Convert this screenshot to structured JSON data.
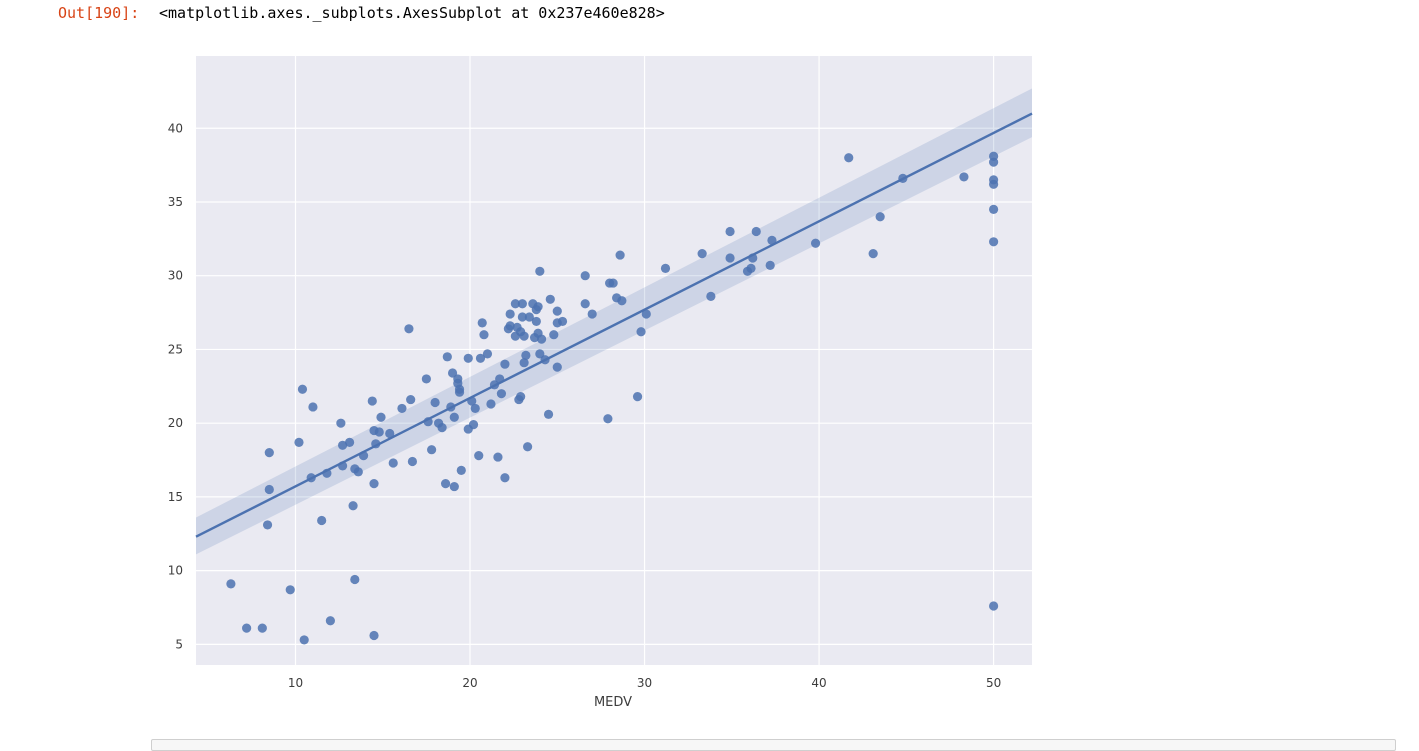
{
  "output": {
    "prompt": "Out[190]:",
    "text": "<matplotlib.axes._subplots.AxesSubplot at 0x237e460e828>"
  },
  "chart_data": {
    "type": "scatter",
    "title": "",
    "xlabel": "MEDV",
    "ylabel": "",
    "xlim": [
      4.3,
      52.2
    ],
    "ylim": [
      3.6,
      44.9
    ],
    "xticks": [
      10,
      20,
      30,
      40,
      50
    ],
    "yticks": [
      5,
      10,
      15,
      20,
      25,
      30,
      35,
      40
    ],
    "grid": true,
    "colors": {
      "points": "#4c72b0",
      "line": "#4c72b0",
      "band": "#4c72b0",
      "background": "#eaeaf2",
      "grid": "#ffffff"
    },
    "regression": {
      "x": [
        4.3,
        52.2
      ],
      "y": [
        12.3,
        41.0
      ],
      "ci_low": [
        11.1,
        39.4
      ],
      "ci_high": [
        13.6,
        42.7
      ]
    },
    "points": {
      "x": [
        6.3,
        7.2,
        8.1,
        8.4,
        8.5,
        8.5,
        9.7,
        10.2,
        10.4,
        10.5,
        10.9,
        11.0,
        11.5,
        11.8,
        12.0,
        12.6,
        12.7,
        12.7,
        13.1,
        13.3,
        13.4,
        13.4,
        13.6,
        13.9,
        14.4,
        14.5,
        14.5,
        14.5,
        14.6,
        14.8,
        14.9,
        15.4,
        15.6,
        16.1,
        16.5,
        16.6,
        16.7,
        17.5,
        17.6,
        17.8,
        18.0,
        18.2,
        18.4,
        18.6,
        18.7,
        18.9,
        19.0,
        19.1,
        19.1,
        19.3,
        19.3,
        19.4,
        19.4,
        19.5,
        19.9,
        19.9,
        20.1,
        20.2,
        20.3,
        20.5,
        20.6,
        20.7,
        20.8,
        21.0,
        21.2,
        21.4,
        21.6,
        21.7,
        21.8,
        22.0,
        22.0,
        22.2,
        22.3,
        22.3,
        22.6,
        22.6,
        22.7,
        22.8,
        22.9,
        22.9,
        23.0,
        23.0,
        23.1,
        23.1,
        23.2,
        23.3,
        23.4,
        23.6,
        23.7,
        23.8,
        23.8,
        23.9,
        23.9,
        24.0,
        24.0,
        24.1,
        24.3,
        24.5,
        24.6,
        24.8,
        25.0,
        25.0,
        25.0,
        25.3,
        26.6,
        26.6,
        27.0,
        27.9,
        28.0,
        28.2,
        28.4,
        28.6,
        28.7,
        29.6,
        29.8,
        30.1,
        31.2,
        33.3,
        33.8,
        34.9,
        34.9,
        35.9,
        36.1,
        36.2,
        36.4,
        37.2,
        37.3,
        39.8,
        41.7,
        43.1,
        43.5,
        44.8,
        48.3,
        50.0,
        50.0,
        50.0,
        50.0,
        50.0,
        50.0,
        50.0
      ],
      "y": [
        9.1,
        6.1,
        6.1,
        13.1,
        18.0,
        15.5,
        8.7,
        18.7,
        22.3,
        5.3,
        16.3,
        21.1,
        13.4,
        16.6,
        6.6,
        20.0,
        17.1,
        18.5,
        18.7,
        14.4,
        9.4,
        16.9,
        16.7,
        17.8,
        21.5,
        15.9,
        5.6,
        19.5,
        18.6,
        19.4,
        20.4,
        19.3,
        17.3,
        21.0,
        26.4,
        21.6,
        17.4,
        23.0,
        20.1,
        18.2,
        21.4,
        20.0,
        19.7,
        15.9,
        24.5,
        21.1,
        23.4,
        20.4,
        15.7,
        23.0,
        22.7,
        22.3,
        22.1,
        16.8,
        24.4,
        19.6,
        21.5,
        19.9,
        21.0,
        17.8,
        24.4,
        26.8,
        26.0,
        24.7,
        21.3,
        22.6,
        17.7,
        23.0,
        22.0,
        16.3,
        24.0,
        26.4,
        26.6,
        27.4,
        28.1,
        25.9,
        26.5,
        21.6,
        21.8,
        26.2,
        28.1,
        27.2,
        24.1,
        25.9,
        24.6,
        18.4,
        27.2,
        28.1,
        25.8,
        27.7,
        26.9,
        27.9,
        26.1,
        30.3,
        24.7,
        25.7,
        24.3,
        20.6,
        28.4,
        26.0,
        27.6,
        26.8,
        23.8,
        26.9,
        28.1,
        30.0,
        27.4,
        20.3,
        29.5,
        29.5,
        28.5,
        31.4,
        28.3,
        21.8,
        26.2,
        27.4,
        30.5,
        31.5,
        28.6,
        33.0,
        31.2,
        30.3,
        30.5,
        31.2,
        33.0,
        30.7,
        32.4,
        32.2,
        38.0,
        31.5,
        34.0,
        36.6,
        36.7,
        38.1,
        37.7,
        36.5,
        36.2,
        34.5,
        32.3,
        7.6
      ]
    }
  }
}
